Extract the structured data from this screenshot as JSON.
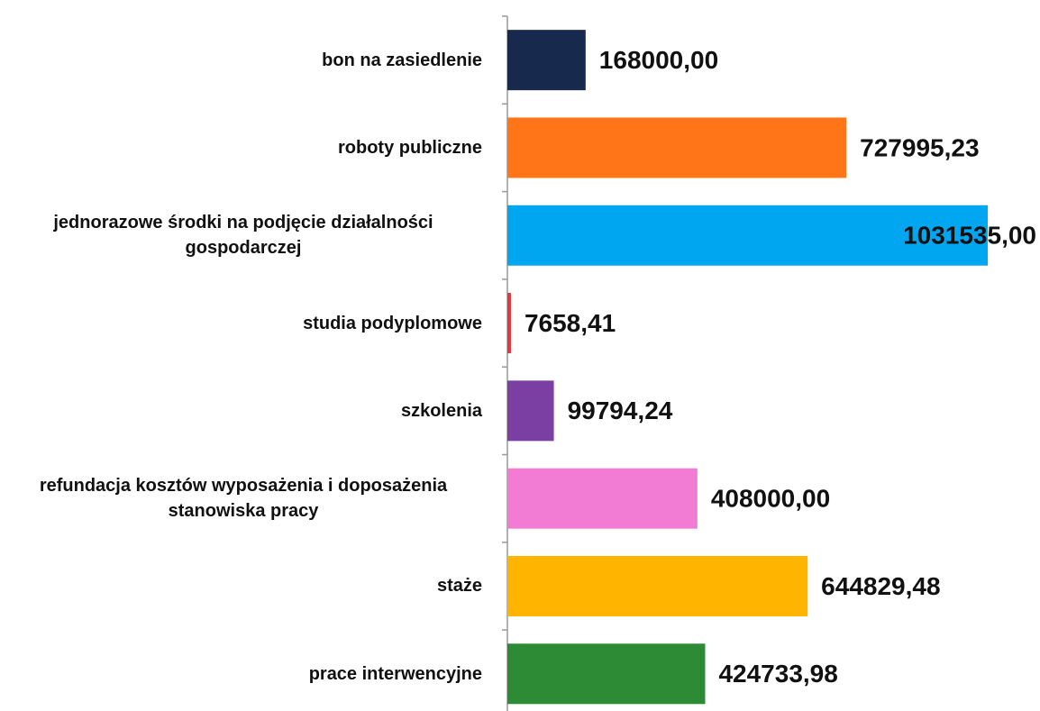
{
  "chart_data": {
    "type": "hbar",
    "categories": [
      "bon na zasiedlenie",
      "roboty publiczne",
      "jednorazowe środki na podjęcie działalności gospodarczej",
      "studia podyplomowe",
      "szkolenia",
      "refundacja kosztów wyposażenia i doposażenia stanowiska pracy",
      "staże",
      "prace interwencyjne"
    ],
    "values": [
      168000,
      727995.23,
      1031535,
      7658.41,
      99794.24,
      408000,
      644829.48,
      424733.98
    ],
    "value_labels": [
      "168000,00",
      "727995,23",
      "1031535,00",
      "7658,41",
      "99794,24",
      "408000,00",
      "644829,48",
      "424733,98"
    ],
    "colors": [
      "#17294d",
      "#ff7518",
      "#00a6f0",
      "#e8343f",
      "#7b3fa3",
      "#f27bd4",
      "#ffb500",
      "#2d8a35"
    ]
  }
}
